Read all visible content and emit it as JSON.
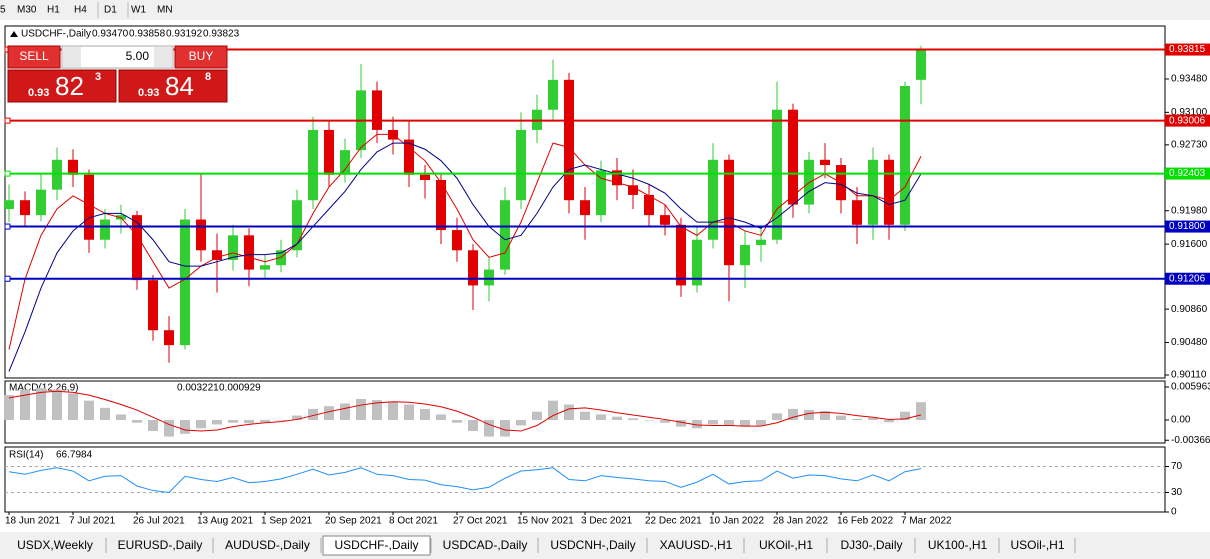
{
  "toolbar": {
    "timeframes": [
      "5",
      "M30",
      "H1",
      "H4",
      "D1",
      "W1",
      "MN"
    ]
  },
  "trade_panel": {
    "sell": "SELL",
    "buy": "BUY",
    "lot": "5.00",
    "sell_price": {
      "big": "0.93",
      "main": "82",
      "sup": "3"
    },
    "buy_price": {
      "big": "0.93",
      "main": "84",
      "sup": "8"
    }
  },
  "chart_data": [
    {
      "type": "candlestick",
      "title": "USDCHF-,Daily",
      "header_values": [
        {
          "value": 0.9347,
          "label": "0.93470"
        },
        {
          "value": 0.93858,
          "label": "0.93858"
        },
        {
          "value": 0.93192,
          "label": "0.93192"
        },
        {
          "value": 0.93823,
          "label": "0.93823"
        }
      ],
      "categories": [
        "18 Jun 2021",
        null,
        null,
        null,
        "7 Jul 2021",
        null,
        null,
        null,
        "26 Jul 2021",
        null,
        null,
        null,
        "13 Aug 2021",
        null,
        null,
        null,
        "1 Sep 2021",
        null,
        null,
        null,
        "20 Sep 2021",
        null,
        null,
        null,
        "8 Oct 2021",
        null,
        null,
        null,
        "27 Oct 2021",
        null,
        null,
        null,
        "15 Nov 2021",
        null,
        null,
        null,
        "3 Dec 2021",
        null,
        null,
        null,
        "22 Dec 2021",
        null,
        null,
        null,
        "10 Jan 2022",
        null,
        null,
        null,
        "28 Jan 2022",
        null,
        null,
        null,
        "16 Feb 2022",
        null,
        null,
        null,
        "7 Mar 2022",
        null
      ],
      "open": [
        0.92,
        0.921,
        0.9193,
        0.9222,
        0.9256,
        0.9239,
        0.9165,
        0.9188,
        0.9193,
        0.9119,
        0.9062,
        0.9045,
        0.9188,
        0.9153,
        0.9142,
        0.917,
        0.9131,
        0.9136,
        0.9153,
        0.921,
        0.929,
        0.9239,
        0.9267,
        0.9335,
        0.929,
        0.9279,
        0.9239,
        0.9233,
        0.9176,
        0.9153,
        0.9113,
        0.9131,
        0.921,
        0.929,
        0.9313,
        0.9347,
        0.921,
        0.9193,
        0.9244,
        0.9227,
        0.9216,
        0.9193,
        0.9182,
        0.9113,
        0.9165,
        0.9256,
        0.9136,
        0.9159,
        0.9165,
        0.9313,
        0.9205,
        0.9256,
        0.925,
        0.921,
        0.9182,
        0.9256,
        0.9182,
        0.9347
      ],
      "high": [
        0.9228,
        0.922,
        0.924,
        0.927,
        0.9268,
        0.9245,
        0.92,
        0.9205,
        0.9198,
        0.9125,
        0.9078,
        0.92,
        0.924,
        0.9172,
        0.9182,
        0.9178,
        0.9148,
        0.9165,
        0.9222,
        0.9305,
        0.93,
        0.928,
        0.9365,
        0.9345,
        0.9305,
        0.93,
        0.925,
        0.924,
        0.919,
        0.916,
        0.9145,
        0.9225,
        0.931,
        0.933,
        0.937,
        0.9355,
        0.9225,
        0.9255,
        0.9258,
        0.9245,
        0.9228,
        0.9205,
        0.919,
        0.918,
        0.9275,
        0.9262,
        0.9175,
        0.918,
        0.9345,
        0.932,
        0.9265,
        0.9275,
        0.9258,
        0.9225,
        0.927,
        0.9262,
        0.9345,
        0.93858
      ],
      "low": [
        0.9185,
        0.918,
        0.9186,
        0.921,
        0.9225,
        0.915,
        0.9155,
        0.9172,
        0.9108,
        0.905,
        0.9025,
        0.904,
        0.914,
        0.9105,
        0.913,
        0.9112,
        0.912,
        0.9128,
        0.9145,
        0.92,
        0.9225,
        0.923,
        0.9258,
        0.9275,
        0.9262,
        0.9225,
        0.9212,
        0.916,
        0.914,
        0.9085,
        0.9095,
        0.9125,
        0.92,
        0.9275,
        0.93,
        0.9195,
        0.9165,
        0.9185,
        0.921,
        0.92,
        0.918,
        0.917,
        0.91,
        0.9105,
        0.9155,
        0.9095,
        0.911,
        0.914,
        0.916,
        0.919,
        0.9195,
        0.9235,
        0.9195,
        0.916,
        0.9165,
        0.9165,
        0.9175,
        0.93192
      ],
      "close": [
        0.921,
        0.9193,
        0.9222,
        0.9256,
        0.9239,
        0.9165,
        0.9188,
        0.9193,
        0.9119,
        0.9062,
        0.9045,
        0.9188,
        0.9153,
        0.9142,
        0.917,
        0.9131,
        0.9136,
        0.9153,
        0.921,
        0.929,
        0.9239,
        0.9267,
        0.9335,
        0.929,
        0.9279,
        0.9239,
        0.9233,
        0.9176,
        0.9153,
        0.9113,
        0.9131,
        0.921,
        0.929,
        0.9313,
        0.9347,
        0.921,
        0.9193,
        0.9244,
        0.9227,
        0.9216,
        0.9193,
        0.9182,
        0.9113,
        0.9165,
        0.9256,
        0.9136,
        0.9159,
        0.9165,
        0.9313,
        0.9205,
        0.9256,
        0.925,
        0.921,
        0.9182,
        0.9256,
        0.9182,
        0.934,
        0.93823
      ],
      "up_color": "#32cd32",
      "down_color": "#e00000",
      "series": [
        {
          "color": "#e00000",
          "values": [
            0.904,
            0.912,
            0.917,
            0.92,
            0.9215,
            0.9205,
            0.9195,
            0.919,
            0.917,
            0.914,
            0.911,
            0.912,
            0.9135,
            0.9145,
            0.915,
            0.9145,
            0.914,
            0.9145,
            0.916,
            0.9195,
            0.9225,
            0.9245,
            0.927,
            0.9285,
            0.9285,
            0.927,
            0.9255,
            0.923,
            0.92,
            0.9165,
            0.9145,
            0.915,
            0.9185,
            0.923,
            0.9275,
            0.927,
            0.925,
            0.9235,
            0.923,
            0.9225,
            0.9215,
            0.9205,
            0.918,
            0.917,
            0.9185,
            0.9185,
            0.9175,
            0.917,
            0.92,
            0.9215,
            0.923,
            0.924,
            0.923,
            0.9215,
            0.9215,
            0.921,
            0.9225,
            0.926
          ]
        },
        {
          "color": "#00008b",
          "values": [
            0.9015,
            0.906,
            0.911,
            0.915,
            0.9175,
            0.919,
            0.9195,
            0.9195,
            0.9185,
            0.9165,
            0.914,
            0.9135,
            0.9135,
            0.914,
            0.9145,
            0.9148,
            0.9148,
            0.915,
            0.916,
            0.918,
            0.92,
            0.922,
            0.9245,
            0.9265,
            0.9275,
            0.9275,
            0.9268,
            0.9255,
            0.9235,
            0.9205,
            0.918,
            0.9165,
            0.917,
            0.9195,
            0.9225,
            0.9245,
            0.925,
            0.9245,
            0.924,
            0.9235,
            0.9228,
            0.9218,
            0.92,
            0.9185,
            0.9185,
            0.919,
            0.9185,
            0.9178,
            0.919,
            0.9205,
            0.922,
            0.923,
            0.9228,
            0.9218,
            0.9215,
            0.9205,
            0.921,
            0.924
          ]
        }
      ],
      "levels": [
        {
          "value": 0.93815,
          "label": "0.93815",
          "color": "#e00000"
        },
        {
          "value": 0.93006,
          "label": "0.93006",
          "color": "#e00000"
        },
        {
          "value": 0.92403,
          "label": "0.92403",
          "color": "#00e000"
        },
        {
          "value": 0.918,
          "label": "0.91800",
          "color": "#0000c0"
        },
        {
          "value": 0.91206,
          "label": "0.91206",
          "color": "#0000c0"
        }
      ],
      "ylim": [
        0.90076,
        0.94083
      ],
      "yticks": [
        {
          "value": 0.9348,
          "label": "0.93480"
        },
        {
          "value": 0.931,
          "label": "0.93100"
        },
        {
          "value": 0.9273,
          "label": "0.92730"
        },
        {
          "value": 0.9198,
          "label": "0.91980"
        },
        {
          "value": 0.916,
          "label": "0.91600"
        },
        {
          "value": 0.9086,
          "label": "0.90860"
        },
        {
          "value": 0.9048,
          "label": "0.90480"
        },
        {
          "value": 0.9011,
          "label": "0.90110"
        }
      ]
    },
    {
      "type": "macd",
      "title": "MACD(12,26,9)",
      "header_values": [
        0.003221,
        0.000929
      ],
      "values": [
        0.0045,
        0.0055,
        0.0058,
        0.0055,
        0.0048,
        0.0035,
        0.0022,
        0.001,
        -0.0005,
        -0.002,
        -0.003,
        -0.0025,
        -0.0015,
        -0.0008,
        -0.0005,
        -0.0006,
        -0.0004,
        0,
        0.0008,
        0.002,
        0.0025,
        0.003,
        0.0038,
        0.0036,
        0.0033,
        0.0028,
        0.002,
        0.001,
        -0.0005,
        -0.002,
        -0.003,
        -0.003,
        -0.001,
        0.0015,
        0.0035,
        0.0028,
        0.0015,
        0.001,
        0.0006,
        0.0003,
        0,
        -0.0005,
        -0.0012,
        -0.0015,
        -0.0008,
        -0.001,
        -0.0012,
        -0.001,
        0.0012,
        0.002,
        0.0018,
        0.0016,
        0.0008,
        0.0002,
        0.0004,
        -0.0004,
        0.0015,
        0.003221
      ],
      "color": "#c0c0c0",
      "signal": {
        "color": "#e00000",
        "values": [
          0.004,
          0.0045,
          0.005,
          0.0052,
          0.005,
          0.0045,
          0.0037,
          0.0028,
          0.0018,
          0.0005,
          -0.0008,
          -0.0018,
          -0.002,
          -0.0018,
          -0.0012,
          -0.0008,
          -0.0005,
          -0.0003,
          0.0001,
          0.0008,
          0.0015,
          0.0021,
          0.0027,
          0.0031,
          0.0033,
          0.0032,
          0.0029,
          0.0024,
          0.0016,
          0.0005,
          -0.0008,
          -0.0018,
          -0.002,
          -0.001,
          0.0008,
          0.002,
          0.0022,
          0.0018,
          0.0013,
          0.0009,
          0.0005,
          0.0001,
          -0.0004,
          -0.0009,
          -0.001,
          -0.001,
          -0.0011,
          -0.0011,
          -0.0005,
          0.0005,
          0.0012,
          0.0014,
          0.0012,
          0.0008,
          0.0005,
          0.0001,
          0.0002,
          0.000929
        ]
      },
      "ylim": [
        -0.00416,
        0.00705
      ],
      "yticks": [
        0.005963,
        {
          "value": 0,
          "label": "0.00"
        },
        -0.003664
      ]
    },
    {
      "type": "rsi",
      "title": "RSI(14)",
      "header_values": [
        66.7984
      ],
      "color": "#1e90ff",
      "values": [
        62,
        58,
        64,
        68,
        63,
        48,
        55,
        56,
        40,
        33,
        30,
        55,
        50,
        47,
        53,
        45,
        47,
        51,
        58,
        66,
        57,
        61,
        68,
        58,
        56,
        50,
        49,
        42,
        39,
        34,
        38,
        52,
        63,
        65,
        68,
        50,
        48,
        56,
        53,
        51,
        48,
        47,
        38,
        46,
        58,
        43,
        47,
        48,
        63,
        52,
        57,
        56,
        51,
        48,
        57,
        48,
        62,
        66.7984
      ],
      "ylim": [
        0,
        100
      ],
      "yticks": [
        70,
        30,
        0
      ],
      "levels": [
        70,
        30
      ]
    }
  ],
  "tabs": {
    "items": [
      "USDX,Weekly",
      "EURUSD-,Daily",
      "AUDUSD-,Daily",
      "USDCHF-,Daily",
      "USDCAD-,Daily",
      "USDCNH-,Daily",
      "XAUUSD-,H1",
      "UKOil-,H1",
      "DJ30-,Daily",
      "UK100-,H1",
      "USOil-,H1"
    ],
    "active": 3
  }
}
